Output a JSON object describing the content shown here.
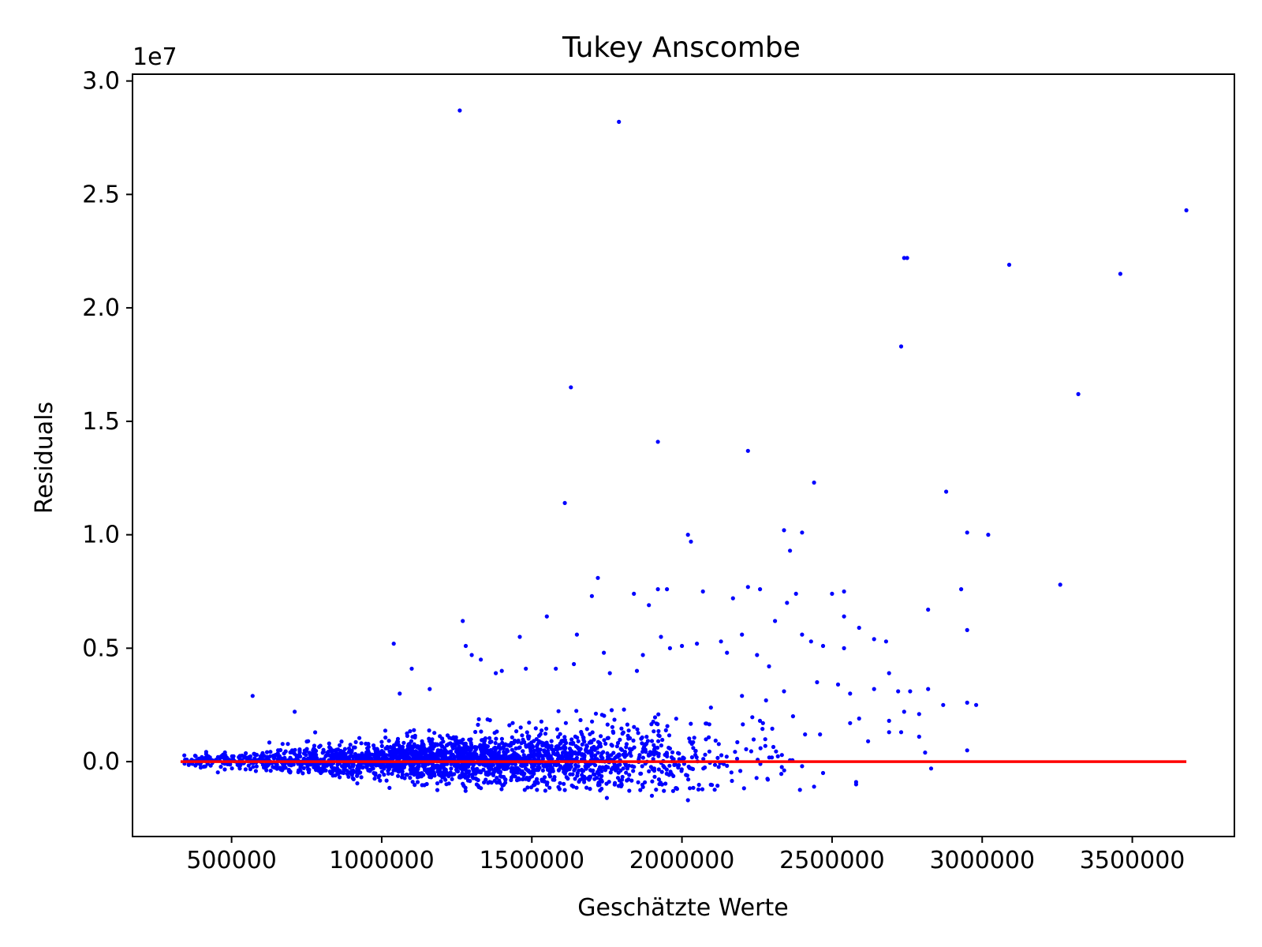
{
  "chart_data": {
    "type": "scatter",
    "title": "Tukey Anscombe",
    "xlabel": "Geschätzte Werte",
    "ylabel": "Residuals",
    "y_offset_label": "1e7",
    "xlim": [
      170000,
      3840000
    ],
    "ylim": [
      -3300000,
      30300000
    ],
    "x_ticks": [
      500000,
      1000000,
      1500000,
      2000000,
      2500000,
      3000000,
      3500000
    ],
    "x_tick_labels": [
      "500000",
      "1000000",
      "1500000",
      "2000000",
      "2500000",
      "3000000",
      "3500000"
    ],
    "y_ticks": [
      0,
      5000000,
      10000000,
      15000000,
      20000000,
      25000000,
      30000000
    ],
    "y_tick_labels": [
      "0.0",
      "0.5",
      "1.0",
      "1.5",
      "2.0",
      "2.5",
      "3.0"
    ],
    "grid": false,
    "point_color": "#0000ff",
    "line_color": "#ff0000",
    "reference_line": {
      "x": [
        330000,
        3680000
      ],
      "y": [
        0,
        0
      ]
    },
    "bulk_cloud": {
      "description_count": 2500,
      "seed": 12345
    },
    "points": [
      [
        1260000,
        28700000
      ],
      [
        1790000,
        28200000
      ],
      [
        3680000,
        24300000
      ],
      [
        2740000,
        22200000
      ],
      [
        2750000,
        22200000
      ],
      [
        3090000,
        21900000
      ],
      [
        3460000,
        21500000
      ],
      [
        2730000,
        18300000
      ],
      [
        1630000,
        16500000
      ],
      [
        3320000,
        16200000
      ],
      [
        1920000,
        14100000
      ],
      [
        2220000,
        13700000
      ],
      [
        2440000,
        12300000
      ],
      [
        2880000,
        11900000
      ],
      [
        1610000,
        11400000
      ],
      [
        2020000,
        10000000
      ],
      [
        2030000,
        9700000
      ],
      [
        2340000,
        10200000
      ],
      [
        2400000,
        10100000
      ],
      [
        2950000,
        10100000
      ],
      [
        3020000,
        10000000
      ],
      [
        2360000,
        9300000
      ],
      [
        3260000,
        7800000
      ],
      [
        2930000,
        7600000
      ],
      [
        1720000,
        8100000
      ],
      [
        1700000,
        7300000
      ],
      [
        1840000,
        7400000
      ],
      [
        1890000,
        6900000
      ],
      [
        1920000,
        7600000
      ],
      [
        1950000,
        7600000
      ],
      [
        2070000,
        7500000
      ],
      [
        2170000,
        7200000
      ],
      [
        2220000,
        7700000
      ],
      [
        2260000,
        7600000
      ],
      [
        2350000,
        7000000
      ],
      [
        2380000,
        7400000
      ],
      [
        2500000,
        7400000
      ],
      [
        2540000,
        7500000
      ],
      [
        2820000,
        6700000
      ],
      [
        1270000,
        6200000
      ],
      [
        1550000,
        6400000
      ],
      [
        1650000,
        5600000
      ],
      [
        1460000,
        5500000
      ],
      [
        1040000,
        5200000
      ],
      [
        1280000,
        5100000
      ],
      [
        1300000,
        4700000
      ],
      [
        1740000,
        4800000
      ],
      [
        1930000,
        5500000
      ],
      [
        1960000,
        5000000
      ],
      [
        2000000,
        5100000
      ],
      [
        2130000,
        5300000
      ],
      [
        2200000,
        5600000
      ],
      [
        2250000,
        4700000
      ],
      [
        2310000,
        6200000
      ],
      [
        2400000,
        5600000
      ],
      [
        2430000,
        5300000
      ],
      [
        2470000,
        5100000
      ],
      [
        2540000,
        6400000
      ],
      [
        2590000,
        5900000
      ],
      [
        2640000,
        5400000
      ],
      [
        2680000,
        5300000
      ],
      [
        2950000,
        5800000
      ],
      [
        2540000,
        5000000
      ],
      [
        2050000,
        5200000
      ],
      [
        1870000,
        4700000
      ],
      [
        1480000,
        4100000
      ],
      [
        1580000,
        4100000
      ],
      [
        1640000,
        4300000
      ],
      [
        1760000,
        3900000
      ],
      [
        2150000,
        4800000
      ],
      [
        2290000,
        4200000
      ],
      [
        2450000,
        3500000
      ],
      [
        2520000,
        3400000
      ],
      [
        2690000,
        3900000
      ],
      [
        2640000,
        3200000
      ],
      [
        2720000,
        3100000
      ],
      [
        2760000,
        3100000
      ],
      [
        2820000,
        3200000
      ],
      [
        2870000,
        2500000
      ],
      [
        2950000,
        2600000
      ],
      [
        2980000,
        2500000
      ],
      [
        2690000,
        1800000
      ],
      [
        2740000,
        2200000
      ],
      [
        2790000,
        2100000
      ],
      [
        2690000,
        1300000
      ],
      [
        2730000,
        1300000
      ],
      [
        2790000,
        1100000
      ],
      [
        2810000,
        400000
      ],
      [
        2830000,
        -300000
      ],
      [
        2950000,
        500000
      ],
      [
        2560000,
        3000000
      ],
      [
        2590000,
        1900000
      ],
      [
        2620000,
        900000
      ],
      [
        2560000,
        1700000
      ],
      [
        2580000,
        -900000
      ],
      [
        2580000,
        -1000000
      ],
      [
        2470000,
        -500000
      ],
      [
        2400000,
        -200000
      ],
      [
        2440000,
        -1100000
      ],
      [
        2020000,
        -1700000
      ],
      [
        1750000,
        -1600000
      ],
      [
        1900000,
        -1500000
      ],
      [
        570000,
        2900000
      ],
      [
        710000,
        2200000
      ],
      [
        1100000,
        4100000
      ],
      [
        1380000,
        3900000
      ],
      [
        1400000,
        4000000
      ],
      [
        1850000,
        4000000
      ],
      [
        1330000,
        4500000
      ],
      [
        1160000,
        3200000
      ],
      [
        1060000,
        3000000
      ],
      [
        2370000,
        2000000
      ],
      [
        2410000,
        1200000
      ],
      [
        2460000,
        1200000
      ],
      [
        2280000,
        2700000
      ],
      [
        2340000,
        3100000
      ],
      [
        2200000,
        2900000
      ]
    ]
  }
}
